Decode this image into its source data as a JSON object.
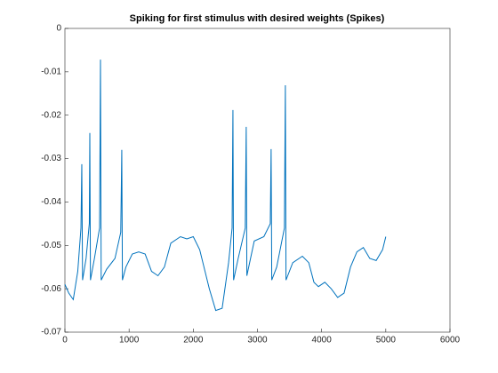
{
  "chart_data": {
    "type": "line",
    "title": "Spiking for first stimulus with desired weights (Spikes)",
    "x": [
      0,
      60,
      130,
      200,
      250,
      263,
      275,
      330,
      380,
      388,
      398,
      460,
      540,
      554,
      565,
      650,
      780,
      870,
      886,
      896,
      950,
      1050,
      1150,
      1250,
      1350,
      1450,
      1550,
      1650,
      1800,
      1900,
      2000,
      2100,
      2250,
      2350,
      2450,
      2550,
      2605,
      2618,
      2628,
      2700,
      2810,
      2825,
      2835,
      2950,
      3100,
      3200,
      3213,
      3223,
      3300,
      3420,
      3435,
      3445,
      3550,
      3700,
      3800,
      3880,
      3950,
      4050,
      4150,
      4250,
      4350,
      4450,
      4550,
      4650,
      4750,
      4850,
      4950,
      5000
    ],
    "series": [
      {
        "color": "#0072bd",
        "values": [
          -0.059,
          -0.061,
          -0.0625,
          -0.056,
          -0.046,
          -0.0313,
          -0.058,
          -0.053,
          -0.045,
          -0.0241,
          -0.058,
          -0.053,
          -0.046,
          -0.0072,
          -0.058,
          -0.0555,
          -0.053,
          -0.047,
          -0.028,
          -0.058,
          -0.055,
          -0.052,
          -0.0515,
          -0.052,
          -0.056,
          -0.057,
          -0.055,
          -0.0495,
          -0.048,
          -0.0485,
          -0.048,
          -0.051,
          -0.06,
          -0.065,
          -0.0645,
          -0.054,
          -0.046,
          -0.0188,
          -0.058,
          -0.053,
          -0.046,
          -0.0227,
          -0.057,
          -0.049,
          -0.048,
          -0.045,
          -0.0278,
          -0.058,
          -0.055,
          -0.046,
          -0.0131,
          -0.058,
          -0.054,
          -0.0525,
          -0.054,
          -0.0585,
          -0.0595,
          -0.0585,
          -0.06,
          -0.062,
          -0.061,
          -0.055,
          -0.0515,
          -0.0505,
          -0.053,
          -0.0535,
          -0.051,
          -0.048
        ]
      }
    ],
    "xlim": [
      0,
      6000
    ],
    "xticks": [
      0,
      1000,
      2000,
      3000,
      4000,
      5000,
      6000
    ],
    "ylim": [
      -0.07,
      0
    ],
    "yticks": [
      0,
      -0.01,
      -0.02,
      -0.03,
      -0.04,
      -0.05,
      -0.06,
      -0.07
    ]
  }
}
